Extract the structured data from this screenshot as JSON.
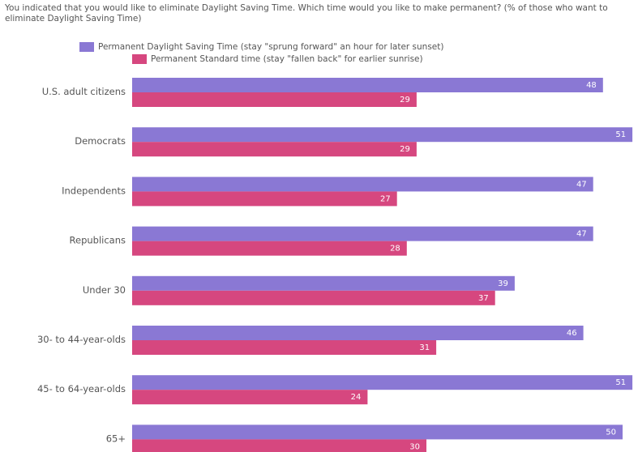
{
  "chart_data": {
    "type": "bar",
    "orientation": "horizontal",
    "title": "You indicated that you would like to eliminate Daylight Saving Time. Which time would you like to make permanent? (% of those who want to eliminate Daylight Saving Time)",
    "categories": [
      "U.S. adult citizens",
      "Democrats",
      "Independents",
      "Republicans",
      "Under 30",
      "30- to 44-year-olds",
      "45- to 64-year-olds",
      "65+"
    ],
    "series": [
      {
        "name": "Permanent Daylight Saving Time (stay \"sprung forward\" an hour for later sunset)",
        "color": "#8a78d4",
        "values": [
          48,
          51,
          47,
          47,
          39,
          46,
          51,
          50
        ]
      },
      {
        "name": "Permanent Standard time (stay \"fallen back\" for earlier sunrise)",
        "color": "#d6477f",
        "values": [
          29,
          29,
          27,
          28,
          37,
          31,
          24,
          30
        ]
      }
    ],
    "xlim": [
      0,
      51
    ],
    "legend_position": "top",
    "grid": false
  }
}
